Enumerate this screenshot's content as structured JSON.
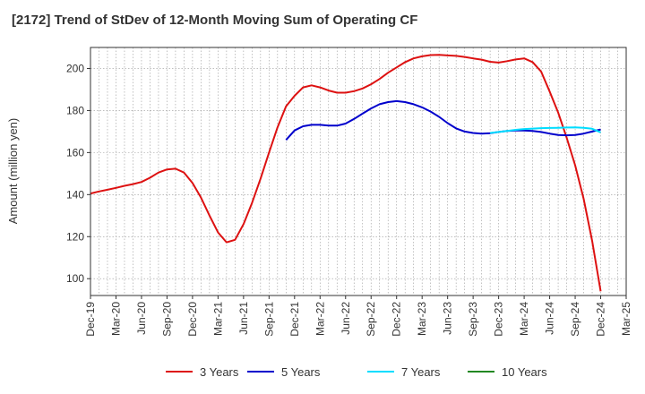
{
  "chart_data": {
    "type": "line",
    "title": "[2172]  Trend of StDev of 12-Month Moving Sum of Operating CF",
    "ylabel": "Amount (million yen)",
    "xlabel": "",
    "x_tick_labels": [
      "Dec-19",
      "Mar-20",
      "Jun-20",
      "Sep-20",
      "Dec-20",
      "Mar-21",
      "Jun-21",
      "Sep-21",
      "Dec-21",
      "Mar-22",
      "Jun-22",
      "Sep-22",
      "Dec-22",
      "Mar-23",
      "Jun-23",
      "Sep-23",
      "Dec-23",
      "Mar-24",
      "Jun-24",
      "Sep-24",
      "Dec-24",
      "Mar-25"
    ],
    "y_ticks": [
      100,
      120,
      140,
      160,
      180,
      200
    ],
    "ylim": [
      92,
      210
    ],
    "grid": true,
    "legend_position": "bottom",
    "series": [
      {
        "name": "3 Years",
        "color": "#dd1111",
        "x": [
          "Dec-19",
          "Jan-20",
          "Feb-20",
          "Mar-20",
          "Apr-20",
          "May-20",
          "Jun-20",
          "Jul-20",
          "Aug-20",
          "Sep-20",
          "Oct-20",
          "Nov-20",
          "Dec-20",
          "Jan-21",
          "Feb-21",
          "Mar-21",
          "Apr-21",
          "May-21",
          "Jun-21",
          "Jul-21",
          "Aug-21",
          "Sep-21",
          "Oct-21",
          "Nov-21",
          "Dec-21",
          "Jan-22",
          "Feb-22",
          "Mar-22",
          "Apr-22",
          "May-22",
          "Jun-22",
          "Jul-22",
          "Aug-22",
          "Sep-22",
          "Oct-22",
          "Nov-22",
          "Dec-22",
          "Jan-23",
          "Feb-23",
          "Mar-23",
          "Apr-23",
          "May-23",
          "Jun-23",
          "Jul-23",
          "Aug-23",
          "Sep-23",
          "Oct-23",
          "Nov-23",
          "Dec-23",
          "Jan-24",
          "Feb-24",
          "Mar-24",
          "Apr-24",
          "May-24",
          "Jun-24",
          "Jul-24",
          "Aug-24",
          "Sep-24",
          "Oct-24",
          "Nov-24",
          "Dec-24"
        ],
        "values": [
          140.5,
          141.5,
          142.3,
          143.2,
          144.2,
          145.0,
          146.0,
          148.0,
          150.5,
          152.0,
          152.3,
          150.5,
          145.5,
          138.5,
          130.0,
          122.0,
          117.3,
          118.5,
          126.0,
          136.0,
          147.5,
          160.0,
          172.0,
          182.0,
          187.0,
          191.0,
          192.0,
          191.0,
          189.5,
          188.5,
          188.5,
          189.2,
          190.5,
          192.5,
          195.0,
          198.0,
          200.5,
          203.0,
          204.8,
          205.8,
          206.4,
          206.5,
          206.2,
          206.0,
          205.5,
          204.8,
          204.2,
          203.2,
          202.8,
          203.5,
          204.3,
          204.8,
          203.0,
          198.5,
          189.0,
          179.0,
          167.0,
          154.0,
          138.0,
          118.0,
          94.0
        ]
      },
      {
        "name": "5 Years",
        "color": "#0000cc",
        "x": [
          "Nov-21",
          "Dec-21",
          "Jan-22",
          "Feb-22",
          "Mar-22",
          "Apr-22",
          "May-22",
          "Jun-22",
          "Jul-22",
          "Aug-22",
          "Sep-22",
          "Oct-22",
          "Nov-22",
          "Dec-22",
          "Jan-23",
          "Feb-23",
          "Mar-23",
          "Apr-23",
          "May-23",
          "Jun-23",
          "Jul-23",
          "Aug-23",
          "Sep-23",
          "Oct-23",
          "Nov-23",
          "Dec-23",
          "Jan-24",
          "Feb-24",
          "Mar-24",
          "Apr-24",
          "May-24",
          "Jun-24",
          "Jul-24",
          "Aug-24",
          "Sep-24",
          "Oct-24",
          "Nov-24",
          "Dec-24"
        ],
        "values": [
          166.0,
          170.5,
          172.5,
          173.2,
          173.2,
          172.8,
          172.8,
          173.8,
          176.0,
          178.5,
          181.0,
          183.0,
          184.0,
          184.5,
          184.0,
          183.0,
          181.5,
          179.5,
          177.0,
          174.0,
          171.5,
          170.0,
          169.3,
          169.0,
          169.2,
          169.8,
          170.3,
          170.5,
          170.5,
          170.3,
          169.8,
          169.0,
          168.4,
          168.2,
          168.4,
          169.0,
          170.0,
          171.0
        ]
      },
      {
        "name": "7 Years",
        "color": "#00ddff",
        "x": [
          "Nov-23",
          "Dec-23",
          "Jan-24",
          "Feb-24",
          "Mar-24",
          "Apr-24",
          "May-24",
          "Jun-24",
          "Jul-24",
          "Aug-24",
          "Sep-24",
          "Oct-24",
          "Nov-24",
          "Dec-24"
        ],
        "values": [
          169.3,
          169.8,
          170.3,
          170.8,
          171.2,
          171.4,
          171.6,
          171.7,
          171.8,
          171.9,
          172.0,
          171.8,
          171.3,
          169.6
        ]
      },
      {
        "name": "10 Years",
        "color": "#228822",
        "x": [],
        "values": []
      }
    ]
  }
}
